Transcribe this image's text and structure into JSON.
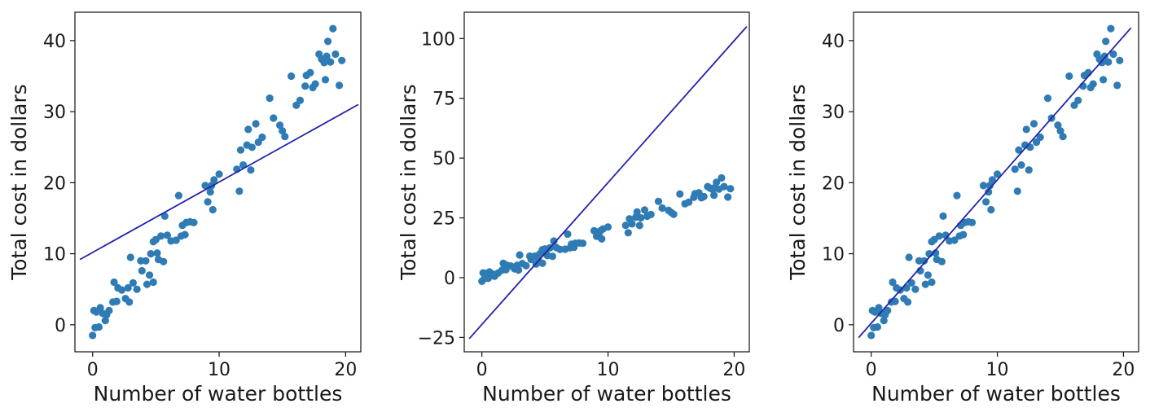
{
  "chart_data": [
    {
      "type": "scatter",
      "xlabel": "Number of water bottles",
      "ylabel": "Total cost in dollars",
      "xlim": [
        -1.4,
        21.2
      ],
      "ylim": [
        -3.8,
        44
      ],
      "xticks": [
        0,
        10,
        20
      ],
      "yticks": [
        0,
        10,
        20,
        30,
        40
      ],
      "grid": false,
      "point_color": "#2f7bb4",
      "line_color": "#2222aa",
      "line": {
        "x": [
          -1,
          21
        ],
        "y": [
          9.2,
          31.0
        ]
      },
      "points": [
        [
          0.0,
          -1.5
        ],
        [
          0.1,
          2.0
        ],
        [
          0.2,
          -0.4
        ],
        [
          0.3,
          1.8
        ],
        [
          0.5,
          -0.3
        ],
        [
          0.6,
          2.4
        ],
        [
          0.8,
          1.6
        ],
        [
          1.0,
          0.6
        ],
        [
          1.1,
          1.4
        ],
        [
          1.3,
          2.0
        ],
        [
          1.6,
          3.2
        ],
        [
          1.7,
          6.0
        ],
        [
          1.9,
          3.3
        ],
        [
          2.0,
          5.2
        ],
        [
          2.3,
          4.9
        ],
        [
          2.6,
          3.7
        ],
        [
          2.8,
          5.2
        ],
        [
          2.9,
          3.2
        ],
        [
          3.0,
          9.5
        ],
        [
          3.2,
          5.9
        ],
        [
          3.5,
          5.0
        ],
        [
          3.8,
          9.0
        ],
        [
          3.9,
          7.6
        ],
        [
          4.2,
          9.0
        ],
        [
          4.3,
          5.7
        ],
        [
          4.5,
          7.0
        ],
        [
          4.6,
          10.0
        ],
        [
          4.8,
          11.7
        ],
        [
          4.8,
          6.0
        ],
        [
          5.0,
          12.0
        ],
        [
          5.1,
          10.1
        ],
        [
          5.2,
          9.2
        ],
        [
          5.4,
          12.5
        ],
        [
          5.6,
          8.9
        ],
        [
          5.7,
          15.3
        ],
        [
          5.9,
          12.6
        ],
        [
          6.2,
          11.8
        ],
        [
          6.6,
          11.9
        ],
        [
          6.8,
          18.2
        ],
        [
          7.0,
          12.5
        ],
        [
          7.1,
          14.0
        ],
        [
          7.3,
          12.7
        ],
        [
          7.4,
          14.4
        ],
        [
          7.7,
          14.5
        ],
        [
          8.0,
          14.4
        ],
        [
          8.9,
          19.6
        ],
        [
          9.1,
          17.3
        ],
        [
          9.3,
          18.7
        ],
        [
          9.4,
          19.6
        ],
        [
          9.5,
          16.2
        ],
        [
          9.6,
          20.4
        ],
        [
          10.0,
          21.2
        ],
        [
          11.4,
          21.9
        ],
        [
          11.6,
          18.8
        ],
        [
          11.7,
          24.6
        ],
        [
          11.9,
          22.5
        ],
        [
          12.2,
          25.3
        ],
        [
          12.3,
          27.5
        ],
        [
          12.5,
          21.8
        ],
        [
          12.6,
          25.0
        ],
        [
          12.9,
          28.3
        ],
        [
          13.1,
          25.7
        ],
        [
          13.4,
          26.4
        ],
        [
          14.0,
          31.9
        ],
        [
          14.3,
          29.1
        ],
        [
          14.8,
          28.1
        ],
        [
          15.0,
          27.3
        ],
        [
          15.2,
          26.5
        ],
        [
          15.7,
          35.0
        ],
        [
          16.1,
          30.9
        ],
        [
          16.4,
          31.6
        ],
        [
          16.8,
          33.6
        ],
        [
          16.9,
          35.1
        ],
        [
          17.2,
          35.5
        ],
        [
          17.4,
          33.4
        ],
        [
          17.6,
          33.9
        ],
        [
          17.9,
          38.1
        ],
        [
          18.1,
          37.4
        ],
        [
          18.3,
          36.9
        ],
        [
          18.4,
          34.5
        ],
        [
          18.5,
          37.8
        ],
        [
          18.6,
          39.9
        ],
        [
          18.8,
          37.0
        ],
        [
          19.0,
          41.7
        ],
        [
          19.2,
          38.1
        ],
        [
          19.5,
          33.7
        ],
        [
          19.7,
          37.2
        ]
      ]
    },
    {
      "type": "scatter",
      "xlabel": "Number of water bottles",
      "ylabel": "Total cost in dollars",
      "xlim": [
        -1.4,
        21.2
      ],
      "ylim": [
        -31,
        111
      ],
      "xticks": [
        0,
        10,
        20
      ],
      "yticks": [
        -25,
        0,
        25,
        50,
        75,
        100
      ],
      "grid": false,
      "point_color": "#2f7bb4",
      "line_color": "#2222aa",
      "line": {
        "x": [
          -1,
          21
        ],
        "y": [
          -25.5,
          105.0
        ]
      },
      "points": [
        [
          0.0,
          -1.5
        ],
        [
          0.1,
          2.0
        ],
        [
          0.2,
          -0.4
        ],
        [
          0.3,
          1.8
        ],
        [
          0.5,
          -0.3
        ],
        [
          0.6,
          2.4
        ],
        [
          0.8,
          1.6
        ],
        [
          1.0,
          0.6
        ],
        [
          1.1,
          1.4
        ],
        [
          1.3,
          2.0
        ],
        [
          1.6,
          3.2
        ],
        [
          1.7,
          6.0
        ],
        [
          1.9,
          3.3
        ],
        [
          2.0,
          5.2
        ],
        [
          2.3,
          4.9
        ],
        [
          2.6,
          3.7
        ],
        [
          2.8,
          5.2
        ],
        [
          2.9,
          3.2
        ],
        [
          3.0,
          9.5
        ],
        [
          3.2,
          5.9
        ],
        [
          3.5,
          5.0
        ],
        [
          3.8,
          9.0
        ],
        [
          3.9,
          7.6
        ],
        [
          4.2,
          9.0
        ],
        [
          4.3,
          5.7
        ],
        [
          4.5,
          7.0
        ],
        [
          4.6,
          10.0
        ],
        [
          4.8,
          11.7
        ],
        [
          4.8,
          6.0
        ],
        [
          5.0,
          12.0
        ],
        [
          5.1,
          10.1
        ],
        [
          5.2,
          9.2
        ],
        [
          5.4,
          12.5
        ],
        [
          5.6,
          8.9
        ],
        [
          5.7,
          15.3
        ],
        [
          5.9,
          12.6
        ],
        [
          6.2,
          11.8
        ],
        [
          6.6,
          11.9
        ],
        [
          6.8,
          18.2
        ],
        [
          7.0,
          12.5
        ],
        [
          7.1,
          14.0
        ],
        [
          7.3,
          12.7
        ],
        [
          7.4,
          14.4
        ],
        [
          7.7,
          14.5
        ],
        [
          8.0,
          14.4
        ],
        [
          8.9,
          19.6
        ],
        [
          9.1,
          17.3
        ],
        [
          9.3,
          18.7
        ],
        [
          9.4,
          19.6
        ],
        [
          9.5,
          16.2
        ],
        [
          9.6,
          20.4
        ],
        [
          10.0,
          21.2
        ],
        [
          11.4,
          21.9
        ],
        [
          11.6,
          18.8
        ],
        [
          11.7,
          24.6
        ],
        [
          11.9,
          22.5
        ],
        [
          12.2,
          25.3
        ],
        [
          12.3,
          27.5
        ],
        [
          12.5,
          21.8
        ],
        [
          12.6,
          25.0
        ],
        [
          12.9,
          28.3
        ],
        [
          13.1,
          25.7
        ],
        [
          13.4,
          26.4
        ],
        [
          14.0,
          31.9
        ],
        [
          14.3,
          29.1
        ],
        [
          14.8,
          28.1
        ],
        [
          15.0,
          27.3
        ],
        [
          15.2,
          26.5
        ],
        [
          15.7,
          35.0
        ],
        [
          16.1,
          30.9
        ],
        [
          16.4,
          31.6
        ],
        [
          16.8,
          33.6
        ],
        [
          16.9,
          35.1
        ],
        [
          17.2,
          35.5
        ],
        [
          17.4,
          33.4
        ],
        [
          17.6,
          33.9
        ],
        [
          17.9,
          38.1
        ],
        [
          18.1,
          37.4
        ],
        [
          18.3,
          36.9
        ],
        [
          18.4,
          34.5
        ],
        [
          18.5,
          37.8
        ],
        [
          18.6,
          39.9
        ],
        [
          18.8,
          37.0
        ],
        [
          19.0,
          41.7
        ],
        [
          19.2,
          38.1
        ],
        [
          19.5,
          33.7
        ],
        [
          19.7,
          37.2
        ]
      ]
    },
    {
      "type": "scatter",
      "xlabel": "Number of water bottles",
      "ylabel": "Total cost in dollars",
      "xlim": [
        -1.4,
        21.2
      ],
      "ylim": [
        -3.8,
        44
      ],
      "xticks": [
        0,
        10,
        20
      ],
      "yticks": [
        0,
        10,
        20,
        30,
        40
      ],
      "grid": false,
      "point_color": "#2f7bb4",
      "line_color": "#2222aa",
      "line": {
        "x": [
          -1,
          20.6
        ],
        "y": [
          -1.8,
          41.8
        ]
      },
      "points": [
        [
          0.0,
          -1.5
        ],
        [
          0.1,
          2.0
        ],
        [
          0.2,
          -0.4
        ],
        [
          0.3,
          1.8
        ],
        [
          0.5,
          -0.3
        ],
        [
          0.6,
          2.4
        ],
        [
          0.8,
          1.6
        ],
        [
          1.0,
          0.6
        ],
        [
          1.1,
          1.4
        ],
        [
          1.3,
          2.0
        ],
        [
          1.6,
          3.2
        ],
        [
          1.7,
          6.0
        ],
        [
          1.9,
          3.3
        ],
        [
          2.0,
          5.2
        ],
        [
          2.3,
          4.9
        ],
        [
          2.6,
          3.7
        ],
        [
          2.8,
          5.2
        ],
        [
          2.9,
          3.2
        ],
        [
          3.0,
          9.5
        ],
        [
          3.2,
          5.9
        ],
        [
          3.5,
          5.0
        ],
        [
          3.8,
          9.0
        ],
        [
          3.9,
          7.6
        ],
        [
          4.2,
          9.0
        ],
        [
          4.3,
          5.7
        ],
        [
          4.5,
          7.0
        ],
        [
          4.6,
          10.0
        ],
        [
          4.8,
          11.7
        ],
        [
          4.8,
          6.0
        ],
        [
          5.0,
          12.0
        ],
        [
          5.1,
          10.1
        ],
        [
          5.2,
          9.2
        ],
        [
          5.4,
          12.5
        ],
        [
          5.6,
          8.9
        ],
        [
          5.7,
          15.3
        ],
        [
          5.9,
          12.6
        ],
        [
          6.2,
          11.8
        ],
        [
          6.6,
          11.9
        ],
        [
          6.8,
          18.2
        ],
        [
          7.0,
          12.5
        ],
        [
          7.1,
          14.0
        ],
        [
          7.3,
          12.7
        ],
        [
          7.4,
          14.4
        ],
        [
          7.7,
          14.5
        ],
        [
          8.0,
          14.4
        ],
        [
          8.9,
          19.6
        ],
        [
          9.1,
          17.3
        ],
        [
          9.3,
          18.7
        ],
        [
          9.4,
          19.6
        ],
        [
          9.5,
          16.2
        ],
        [
          9.6,
          20.4
        ],
        [
          10.0,
          21.2
        ],
        [
          11.4,
          21.9
        ],
        [
          11.6,
          18.8
        ],
        [
          11.7,
          24.6
        ],
        [
          11.9,
          22.5
        ],
        [
          12.2,
          25.3
        ],
        [
          12.3,
          27.5
        ],
        [
          12.5,
          21.8
        ],
        [
          12.6,
          25.0
        ],
        [
          12.9,
          28.3
        ],
        [
          13.1,
          25.7
        ],
        [
          13.4,
          26.4
        ],
        [
          14.0,
          31.9
        ],
        [
          14.3,
          29.1
        ],
        [
          14.8,
          28.1
        ],
        [
          15.0,
          27.3
        ],
        [
          15.2,
          26.5
        ],
        [
          15.7,
          35.0
        ],
        [
          16.1,
          30.9
        ],
        [
          16.4,
          31.6
        ],
        [
          16.8,
          33.6
        ],
        [
          16.9,
          35.1
        ],
        [
          17.2,
          35.5
        ],
        [
          17.4,
          33.4
        ],
        [
          17.6,
          33.9
        ],
        [
          17.9,
          38.1
        ],
        [
          18.1,
          37.4
        ],
        [
          18.3,
          36.9
        ],
        [
          18.4,
          34.5
        ],
        [
          18.5,
          37.8
        ],
        [
          18.6,
          39.9
        ],
        [
          18.8,
          37.0
        ],
        [
          19.0,
          41.7
        ],
        [
          19.2,
          38.1
        ],
        [
          19.5,
          33.7
        ],
        [
          19.7,
          37.2
        ]
      ]
    }
  ]
}
